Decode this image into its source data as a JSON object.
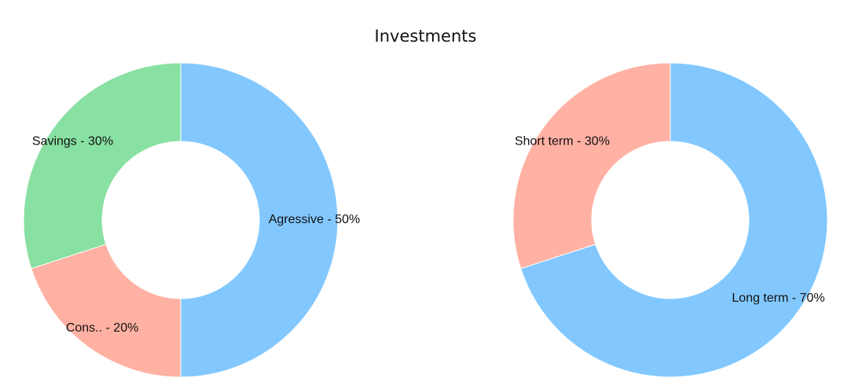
{
  "title": "Investments",
  "chart_data": [
    {
      "type": "pie",
      "slices": [
        {
          "label": "Agressive - 50%",
          "value": 50,
          "color": "#82c8ff"
        },
        {
          "label": "Cons.. - 20%",
          "value": 20,
          "color": "#ffb1a3"
        },
        {
          "label": "Savings - 30%",
          "value": 30,
          "color": "#88e0a2"
        }
      ]
    },
    {
      "type": "pie",
      "slices": [
        {
          "label": "Long term - 70%",
          "value": 70,
          "color": "#82c8ff"
        },
        {
          "label": "Short term - 30%",
          "value": 30,
          "color": "#ffb1a3"
        }
      ]
    }
  ]
}
